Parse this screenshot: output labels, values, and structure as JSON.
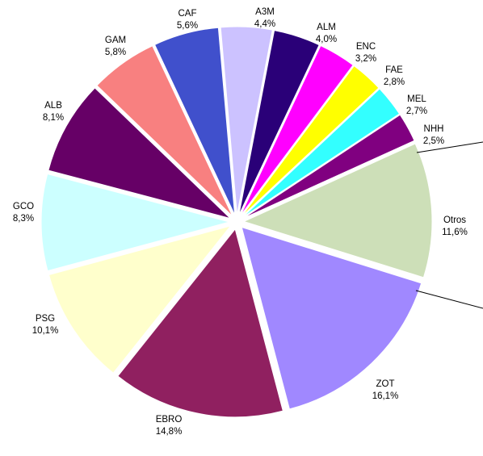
{
  "chart_data": {
    "type": "pie",
    "exploded": true,
    "slices": [
      {
        "label": "A3M",
        "value": "4,4%",
        "pct": 4.4,
        "color": "#ccc2ff"
      },
      {
        "label": "ALM",
        "value": "4,0%",
        "pct": 4.0,
        "color": "#2a0078"
      },
      {
        "label": "ENC",
        "value": "3,2%",
        "pct": 3.2,
        "color": "#ff00ff"
      },
      {
        "label": "FAE",
        "value": "2,8%",
        "pct": 2.8,
        "color": "#ffff00"
      },
      {
        "label": "MEL",
        "value": "2,7%",
        "pct": 2.7,
        "color": "#33ffff"
      },
      {
        "label": "NHH",
        "value": "2,5%",
        "pct": 2.5,
        "color": "#800080"
      },
      {
        "label": "Otros",
        "value": "11,6%",
        "pct": 11.6,
        "color": "#cddfb8"
      },
      {
        "label": "ZOT",
        "value": "16,1%",
        "pct": 16.1,
        "color": "#a088ff"
      },
      {
        "label": "EBRO",
        "value": "14,8%",
        "pct": 14.8,
        "color": "#902060"
      },
      {
        "label": "PSG",
        "value": "10,1%",
        "pct": 10.1,
        "color": "#ffffcc"
      },
      {
        "label": "GCO",
        "value": "8,3%",
        "pct": 8.3,
        "color": "#ccffff"
      },
      {
        "label": "ALB",
        "value": "8,1%",
        "pct": 8.1,
        "color": "#660066"
      },
      {
        "label": "GAM",
        "value": "5,8%",
        "pct": 5.8,
        "color": "#f88080"
      },
      {
        "label": "CAF",
        "value": "5,6%",
        "pct": 5.6,
        "color": "#4050cc"
      }
    ]
  }
}
